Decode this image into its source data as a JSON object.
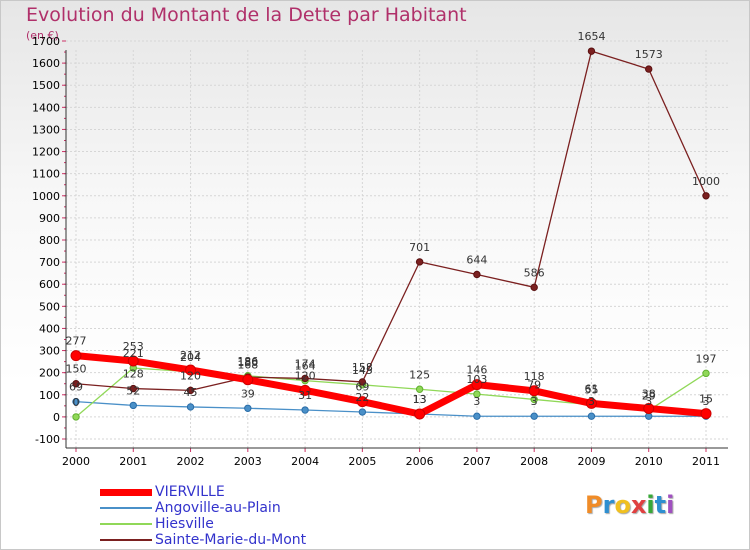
{
  "title": "Evolution du Montant de la Dette par Habitant",
  "subtitle": "(en €)",
  "logo": {
    "letters": [
      "P",
      "r",
      "o",
      "x",
      "i",
      "t",
      "i"
    ],
    "colors": [
      "#f08c28",
      "#2e8fd0",
      "#f0c020",
      "#e04040",
      "#38a838",
      "#2e8fd0",
      "#a050c0"
    ]
  },
  "chart_data": {
    "type": "line",
    "x": [
      "2000",
      "2001",
      "2002",
      "2003",
      "2004",
      "2005",
      "2006",
      "2007",
      "2008",
      "2009",
      "2010",
      "2011"
    ],
    "yticks": [
      "-100",
      "0",
      "100",
      "200",
      "300",
      "400",
      "500",
      "600",
      "700",
      "800",
      "900",
      "1000",
      "1100",
      "1200",
      "1300",
      "1400",
      "1500",
      "1600",
      "1700"
    ],
    "ylim": [
      -100,
      1700
    ],
    "grid": true,
    "legend_position": "bottom-left",
    "series": [
      {
        "name": "VIERVILLE",
        "color": "#ff0000",
        "values": [
          277,
          253,
          212,
          168,
          120,
          69,
          13,
          146,
          118,
          61,
          38,
          15
        ],
        "labels": [
          "277",
          "253",
          "212",
          "168",
          "120",
          "69",
          "13",
          "146",
          "118",
          "61",
          "38",
          "15"
        ]
      },
      {
        "name": "Angoville-au-Plain",
        "color": "#4a90c8",
        "values": [
          69,
          52,
          45,
          39,
          31,
          22,
          13,
          3,
          3,
          3,
          3,
          3
        ],
        "labels": [
          "69",
          "52",
          "45",
          "39",
          "31",
          "22",
          "13",
          "3",
          "3",
          "3",
          "3",
          "3"
        ]
      },
      {
        "name": "Hiesville",
        "color": "#90d858",
        "values": [
          0,
          221,
          204,
          186,
          164,
          145,
          125,
          103,
          79,
          55,
          29,
          197
        ],
        "labels": [
          "0",
          "221",
          "204",
          "186",
          "164",
          "145",
          "125",
          "103",
          "79",
          "55",
          "29",
          "197"
        ]
      },
      {
        "name": "Sainte-Marie-du-Mont",
        "color": "#7b2020",
        "values": [
          150,
          128,
          120,
          180,
          174,
          158,
          701,
          644,
          586,
          1654,
          1573,
          1000
        ],
        "labels": [
          "150",
          "128",
          "120",
          "180",
          "174",
          "158",
          "701",
          "644",
          "586",
          "1654",
          "1573",
          "1000"
        ]
      }
    ]
  }
}
